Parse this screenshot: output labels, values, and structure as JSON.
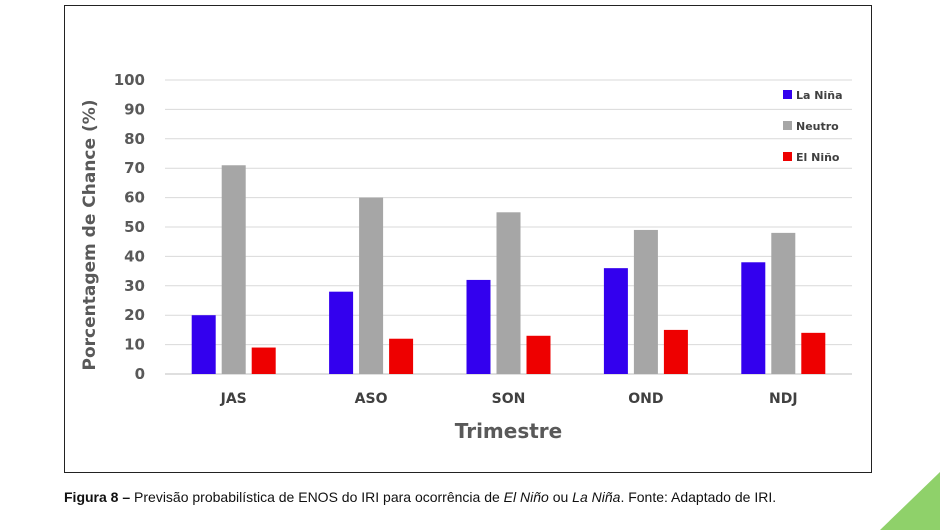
{
  "chart_data": {
    "type": "bar",
    "categories": [
      "JAS",
      "ASO",
      "SON",
      "OND",
      "NDJ"
    ],
    "series": [
      {
        "name": "La Niña",
        "color": "#3300ee",
        "values": [
          20,
          28,
          32,
          36,
          38
        ]
      },
      {
        "name": "Neutro",
        "color": "#a6a6a6",
        "values": [
          71,
          60,
          55,
          49,
          48
        ]
      },
      {
        "name": "El Niño",
        "color": "#ee0000",
        "values": [
          9,
          12,
          13,
          15,
          14
        ]
      }
    ],
    "xlabel": "Trimestre",
    "ylabel": "Porcentagem de Chance (%)",
    "ylim": [
      0,
      100
    ],
    "yticks": [
      0,
      10,
      20,
      30,
      40,
      50,
      60,
      70,
      80,
      90,
      100
    ],
    "grid": true,
    "legend_position": "top-right"
  },
  "caption": {
    "label": "Figura 8 –",
    "text_1": " Previsão probabilística de ENOS do IRI para ocorrência de ",
    "em_1": "El Niño",
    "text_2": " ou ",
    "em_2": "La Niña",
    "text_3": ". Fonte: Adaptado de IRI."
  },
  "decoration": {
    "corner_color": "#8fd16a"
  }
}
